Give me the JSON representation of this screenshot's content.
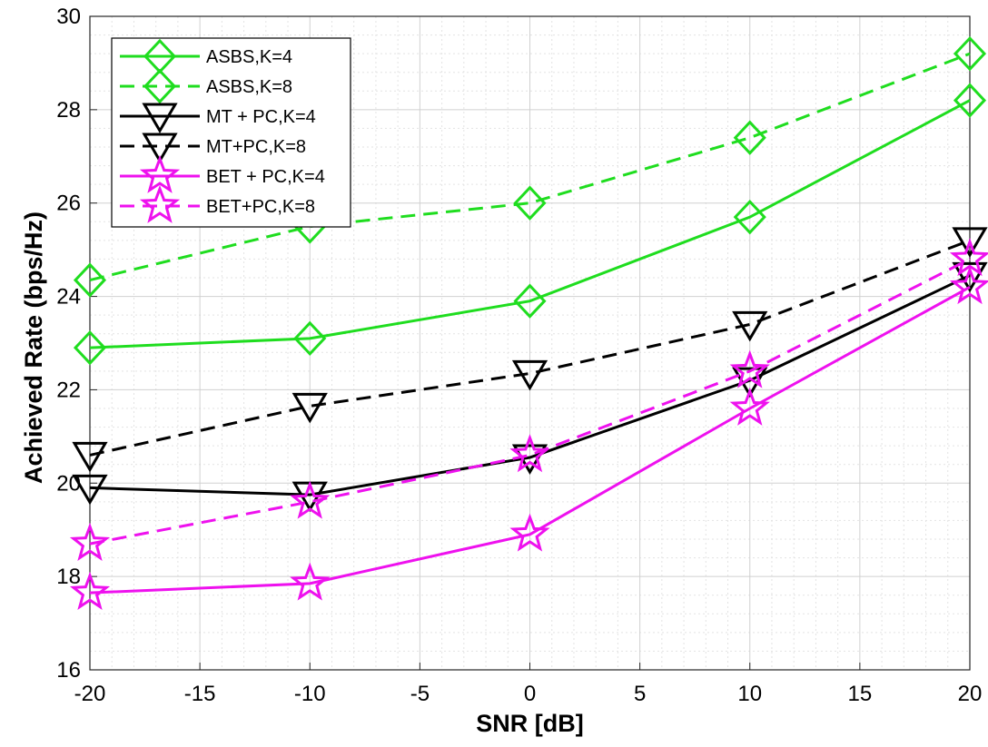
{
  "chart_data": {
    "type": "line",
    "xlabel": "SNR [dB]",
    "ylabel": "Achieved Rate (bps/Hz)",
    "xlim": [
      -20,
      20
    ],
    "ylim": [
      16,
      30
    ],
    "xticks": [
      -20,
      -15,
      -10,
      -5,
      0,
      5,
      10,
      15,
      20
    ],
    "yticks": [
      16,
      18,
      20,
      22,
      24,
      26,
      28,
      30
    ],
    "grid": true,
    "minor_grid": true,
    "legend_position": "top-left",
    "x": [
      -20,
      -10,
      0,
      10,
      20
    ],
    "series": [
      {
        "name": "ASBS,K=4",
        "values": [
          22.9,
          23.1,
          23.9,
          25.7,
          28.2
        ],
        "color": "#1fdd1f",
        "dash": "solid",
        "marker": "diamond"
      },
      {
        "name": "ASBS,K=8",
        "values": [
          24.35,
          25.5,
          26.0,
          27.4,
          29.2
        ],
        "color": "#1fdd1f",
        "dash": "dashed",
        "marker": "diamond"
      },
      {
        "name": "MT + PC,K=4",
        "values": [
          19.9,
          19.75,
          20.55,
          22.2,
          24.45
        ],
        "color": "#000000",
        "dash": "solid",
        "marker": "triangle-down"
      },
      {
        "name": "MT+PC,K=8",
        "values": [
          20.6,
          21.65,
          22.35,
          23.4,
          25.2
        ],
        "color": "#000000",
        "dash": "dashed",
        "marker": "triangle-down"
      },
      {
        "name": "BET + PC,K=4",
        "values": [
          17.65,
          17.85,
          18.9,
          21.6,
          24.2
        ],
        "color": "#ee11ee",
        "dash": "solid",
        "marker": "star"
      },
      {
        "name": "BET+PC,K=8",
        "values": [
          18.7,
          19.6,
          20.6,
          22.4,
          24.8
        ],
        "color": "#ee11ee",
        "dash": "dashed",
        "marker": "star"
      }
    ]
  }
}
